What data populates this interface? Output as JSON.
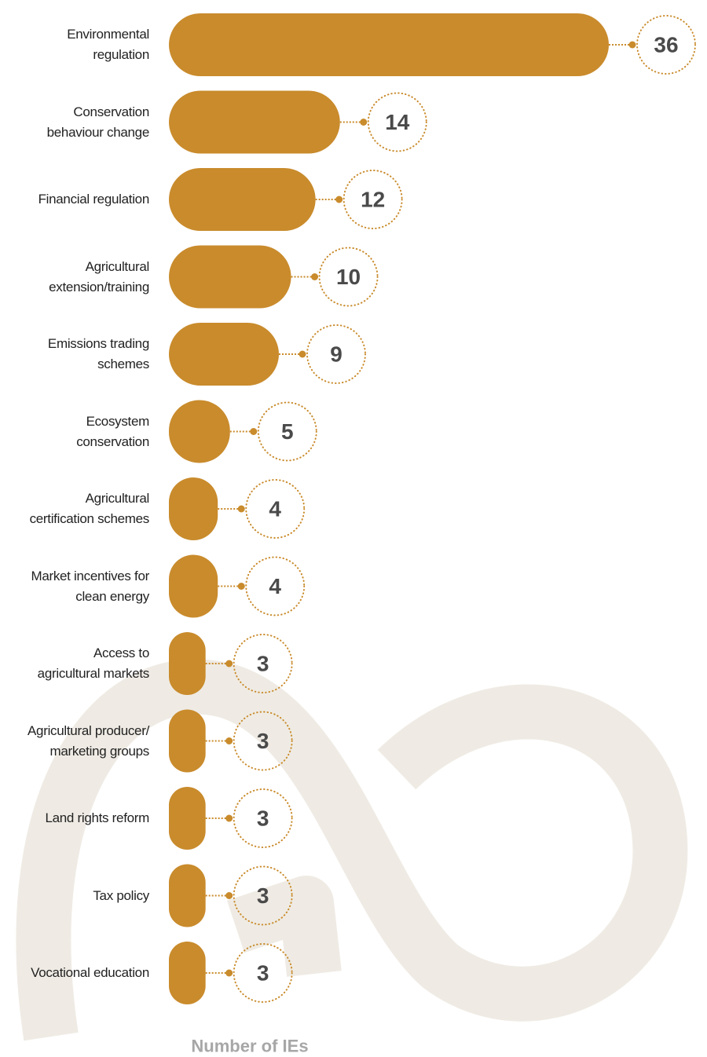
{
  "chart_data": {
    "type": "bar",
    "orientation": "horizontal",
    "color": "#c98b2c",
    "x_label": "Number of IEs",
    "categories": [
      "Environmental\nregulation",
      "Conservation\nbehaviour change",
      "Financial regulation",
      "Agricultural\nextension/training",
      "Emissions trading\nschemes",
      "Ecosystem\nconservation",
      "Agricultural\ncertification schemes",
      "Market incentives for\nclean energy",
      "Access to\nagricultural markets",
      "Agricultural producer/\nmarketing groups",
      "Land rights reform",
      "Tax policy",
      "Vocational education"
    ],
    "values": [
      36,
      14,
      12,
      10,
      9,
      5,
      4,
      4,
      3,
      3,
      3,
      3,
      3
    ]
  }
}
